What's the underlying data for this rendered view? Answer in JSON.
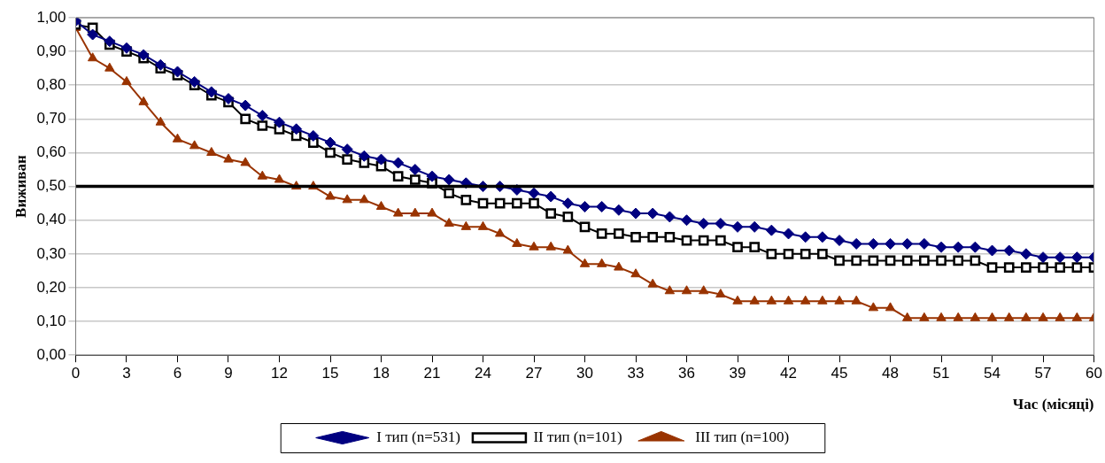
{
  "chart_data": {
    "type": "line",
    "xlabel": "Час (місяці)",
    "ylabel": "Виживан",
    "x": [
      0,
      1,
      2,
      3,
      4,
      5,
      6,
      7,
      8,
      9,
      10,
      11,
      12,
      13,
      14,
      15,
      16,
      17,
      18,
      19,
      20,
      21,
      22,
      23,
      24,
      25,
      26,
      27,
      28,
      29,
      30,
      31,
      32,
      33,
      34,
      35,
      36,
      37,
      38,
      39,
      40,
      41,
      42,
      43,
      44,
      45,
      46,
      47,
      48,
      49,
      50,
      51,
      52,
      53,
      54,
      55,
      56,
      57,
      58,
      59,
      60
    ],
    "xlim": [
      0,
      60
    ],
    "xticks": [
      0,
      3,
      6,
      9,
      12,
      15,
      18,
      21,
      24,
      27,
      30,
      33,
      36,
      39,
      42,
      45,
      48,
      51,
      54,
      57,
      60
    ],
    "ylim": [
      0,
      1
    ],
    "yticks": [
      {
        "value": 0,
        "label": "0,00"
      },
      {
        "value": 0.1,
        "label": "0,10"
      },
      {
        "value": 0.2,
        "label": "0,20"
      },
      {
        "value": 0.3,
        "label": "0,30"
      },
      {
        "value": 0.4,
        "label": "0,40"
      },
      {
        "value": 0.5,
        "label": "0,50"
      },
      {
        "value": 0.6,
        "label": "0,60"
      },
      {
        "value": 0.7,
        "label": "0,70"
      },
      {
        "value": 0.8,
        "label": "0,80"
      },
      {
        "value": 0.9,
        "label": "0,90"
      },
      {
        "value": 1,
        "label": "1,00"
      }
    ],
    "grid": "y",
    "legend": "bottom",
    "line_style": "solid",
    "ref_lines": [
      {
        "axis": "y",
        "value": 0.5,
        "color": "#000000"
      }
    ],
    "series": [
      {
        "name": "I тип (n=531)",
        "color": "#000080",
        "marker": "diamond",
        "values": [
          0.99,
          0.95,
          0.93,
          0.91,
          0.89,
          0.86,
          0.84,
          0.81,
          0.78,
          0.76,
          0.74,
          0.71,
          0.69,
          0.67,
          0.65,
          0.63,
          0.61,
          0.59,
          0.58,
          0.57,
          0.55,
          0.53,
          0.52,
          0.51,
          0.5,
          0.5,
          0.49,
          0.48,
          0.47,
          0.45,
          0.44,
          0.44,
          0.43,
          0.42,
          0.42,
          0.41,
          0.4,
          0.39,
          0.39,
          0.38,
          0.38,
          0.37,
          0.36,
          0.35,
          0.35,
          0.34,
          0.33,
          0.33,
          0.33,
          0.33,
          0.33,
          0.32,
          0.32,
          0.32,
          0.31,
          0.31,
          0.3,
          0.29,
          0.29,
          0.29,
          0.29
        ]
      },
      {
        "name": "II тип (n=101)",
        "color": "#000000",
        "marker": "square",
        "values": [
          0.98,
          0.97,
          0.92,
          0.9,
          0.88,
          0.85,
          0.83,
          0.8,
          0.77,
          0.75,
          0.7,
          0.68,
          0.67,
          0.65,
          0.63,
          0.6,
          0.58,
          0.57,
          0.56,
          0.53,
          0.52,
          0.51,
          0.48,
          0.46,
          0.45,
          0.45,
          0.45,
          0.45,
          0.42,
          0.41,
          0.38,
          0.36,
          0.36,
          0.35,
          0.35,
          0.35,
          0.34,
          0.34,
          0.34,
          0.32,
          0.32,
          0.3,
          0.3,
          0.3,
          0.3,
          0.28,
          0.28,
          0.28,
          0.28,
          0.28,
          0.28,
          0.28,
          0.28,
          0.28,
          0.26,
          0.26,
          0.26,
          0.26,
          0.26,
          0.26,
          0.26
        ]
      },
      {
        "name": "III тип (n=100)",
        "color": "#993300",
        "marker": "triangle",
        "values": [
          0.97,
          0.88,
          0.85,
          0.81,
          0.75,
          0.69,
          0.64,
          0.62,
          0.6,
          0.58,
          0.57,
          0.53,
          0.52,
          0.5,
          0.5,
          0.47,
          0.46,
          0.46,
          0.44,
          0.42,
          0.42,
          0.42,
          0.39,
          0.38,
          0.38,
          0.36,
          0.33,
          0.32,
          0.32,
          0.31,
          0.27,
          0.27,
          0.26,
          0.24,
          0.21,
          0.19,
          0.19,
          0.19,
          0.18,
          0.16,
          0.16,
          0.16,
          0.16,
          0.16,
          0.16,
          0.16,
          0.16,
          0.14,
          0.14,
          0.11,
          0.11,
          0.11,
          0.11,
          0.11,
          0.11,
          0.11,
          0.11,
          0.11,
          0.11,
          0.11,
          0.11
        ]
      }
    ]
  }
}
